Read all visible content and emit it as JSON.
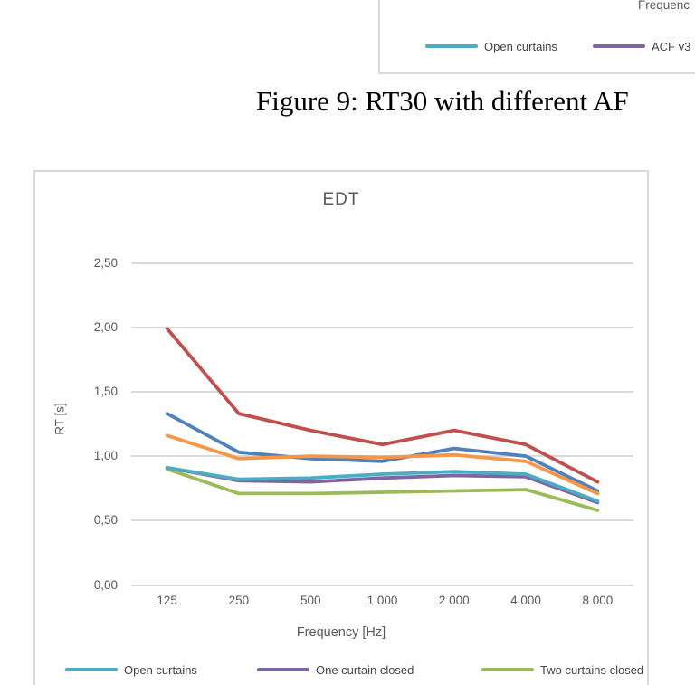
{
  "caption": "Figure 9: RT30 with different AF",
  "top_chart": {
    "x_axis_label_partial": "Frequenc",
    "legend": [
      {
        "label": "Open curtains",
        "color": "#4BACC6"
      },
      {
        "label": "ACF v3",
        "color": "#8064A2"
      }
    ]
  },
  "main_chart": {
    "title": "EDT",
    "x_axis_label": "Frequency [Hz]",
    "y_axis_label": "RT [s]",
    "legend": [
      {
        "label": "Open curtains",
        "color": "#4BACC6"
      },
      {
        "label": "One curtain closed",
        "color": "#8064A2"
      },
      {
        "label": "Two curtains closed",
        "color": "#9BBB59"
      }
    ]
  },
  "chart_data": {
    "type": "line",
    "title": "EDT",
    "xlabel": "Frequency [Hz]",
    "ylabel": "RT [s]",
    "categories": [
      "125",
      "250",
      "500",
      "1 000",
      "2 000",
      "4 000",
      "8 000"
    ],
    "y_tick_labels": [
      "2,50",
      "2,00",
      "1,50",
      "1,00",
      "0,50",
      "0,00"
    ],
    "y_tick_values": [
      2.5,
      2.0,
      1.5,
      1.0,
      0.5,
      0.0
    ],
    "ylim": [
      0,
      2.5
    ],
    "grid": true,
    "legend_position": "bottom",
    "series": [
      {
        "name": "unlabeled (blue)",
        "color": "#4F81BD",
        "values": [
          1.33,
          1.03,
          0.98,
          0.96,
          1.06,
          1.0,
          0.73
        ]
      },
      {
        "name": "unlabeled (red)",
        "color": "#C0504D",
        "values": [
          1.99,
          1.33,
          1.2,
          1.09,
          1.2,
          1.09,
          0.8
        ]
      },
      {
        "name": "Two curtains closed",
        "color": "#9BBB59",
        "values": [
          0.9,
          0.71,
          0.71,
          0.72,
          0.73,
          0.74,
          0.58
        ]
      },
      {
        "name": "One curtain closed",
        "color": "#8064A2",
        "values": [
          0.91,
          0.81,
          0.8,
          0.83,
          0.85,
          0.84,
          0.64
        ]
      },
      {
        "name": "Open curtains",
        "color": "#4BACC6",
        "values": [
          0.91,
          0.82,
          0.83,
          0.86,
          0.88,
          0.86,
          0.65
        ]
      },
      {
        "name": "unlabeled (orange)",
        "color": "#F79646",
        "values": [
          1.16,
          0.98,
          1.0,
          0.99,
          1.01,
          0.96,
          0.71
        ]
      }
    ]
  },
  "colors": {
    "grid": "#D9D9D9",
    "border": "#D9D9D9",
    "axis_text": "#595959",
    "legend_text": "#444444"
  }
}
